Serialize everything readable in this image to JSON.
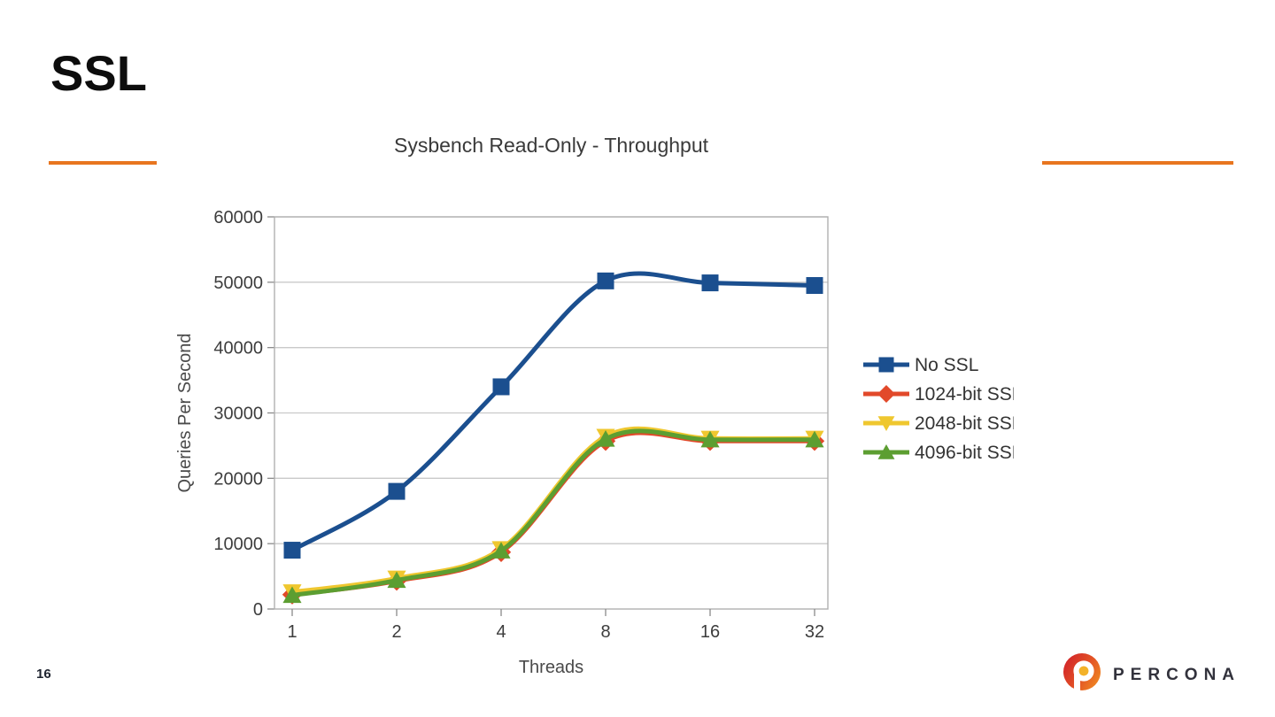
{
  "slide": {
    "title": "SSL",
    "page_number": "16",
    "accent_color": "#e8751f"
  },
  "footer": {
    "brand": "PERCONA"
  },
  "chart_data": {
    "type": "line",
    "title": "Sysbench Read-Only - Throughput",
    "xlabel": "Threads",
    "ylabel": "Queries Per Second",
    "categories": [
      "1",
      "2",
      "4",
      "8",
      "16",
      "32"
    ],
    "ylim": [
      0,
      60000
    ],
    "ytick_step": 10000,
    "grid": true,
    "smooth": true,
    "legend_position": "right",
    "series": [
      {
        "name": "No SSL",
        "color": "#1b4f8f",
        "marker": "square",
        "values": [
          9000,
          18000,
          34000,
          50200,
          49900,
          49500
        ]
      },
      {
        "name": "1024-bit SSL",
        "color": "#e2492a",
        "marker": "diamond",
        "values": [
          2200,
          4300,
          8700,
          25700,
          25700,
          25700
        ]
      },
      {
        "name": "2048-bit SSL",
        "color": "#efc72f",
        "marker": "triangle-down",
        "values": [
          2600,
          4700,
          9200,
          26400,
          26100,
          26100
        ]
      },
      {
        "name": "4096-bit SSL",
        "color": "#5c9e31",
        "marker": "triangle-up",
        "values": [
          2100,
          4400,
          8900,
          26000,
          25900,
          25900
        ]
      }
    ]
  }
}
